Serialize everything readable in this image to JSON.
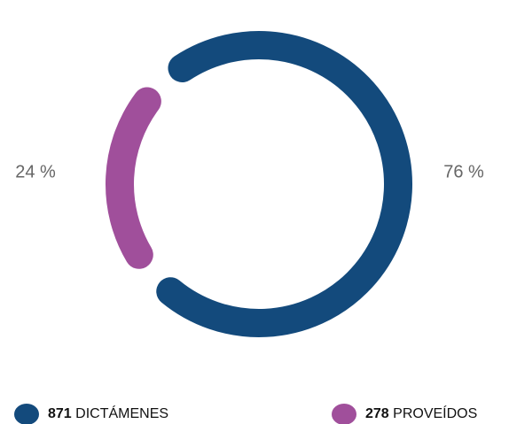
{
  "chart_data": {
    "type": "donut",
    "categories": [
      "DICTÁMENES",
      "PROVEÍDOS"
    ],
    "values": [
      871,
      278
    ],
    "value_labels": [
      "76 %",
      "24 %"
    ],
    "colors": [
      "#134a7c",
      "#a04f9b"
    ]
  }
}
